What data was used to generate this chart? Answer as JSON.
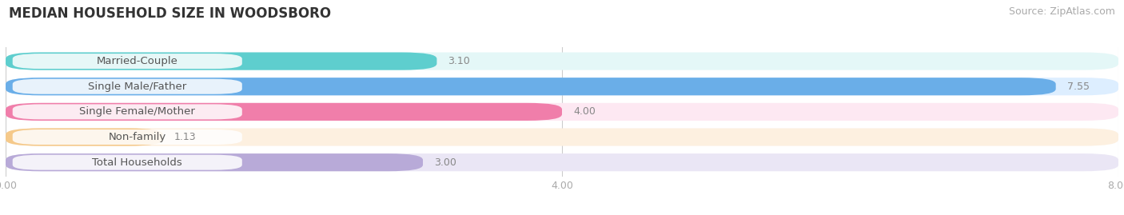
{
  "title": "MEDIAN HOUSEHOLD SIZE IN WOODSBORO",
  "source": "Source: ZipAtlas.com",
  "categories": [
    "Married-Couple",
    "Single Male/Father",
    "Single Female/Mother",
    "Non-family",
    "Total Households"
  ],
  "values": [
    3.1,
    7.55,
    4.0,
    1.13,
    3.0
  ],
  "bar_colors": [
    "#5ecece",
    "#6aaee8",
    "#f07eaa",
    "#f5c98a",
    "#b8aad8"
  ],
  "bar_bg_colors": [
    "#e4f7f7",
    "#ddeeff",
    "#fde8f2",
    "#fdf0e0",
    "#eae6f5"
  ],
  "xlim": [
    0,
    8.0
  ],
  "xticks": [
    0.0,
    4.0,
    8.0
  ],
  "xtick_labels": [
    "0.00",
    "4.00",
    "8.00"
  ],
  "title_fontsize": 12,
  "source_fontsize": 9,
  "label_fontsize": 9.5,
  "value_fontsize": 9,
  "tick_fontsize": 9,
  "background_color": "#ffffff",
  "label_text_color": "#555555",
  "value_color_outside": "#888888",
  "value_color_inside": "#ffffff"
}
